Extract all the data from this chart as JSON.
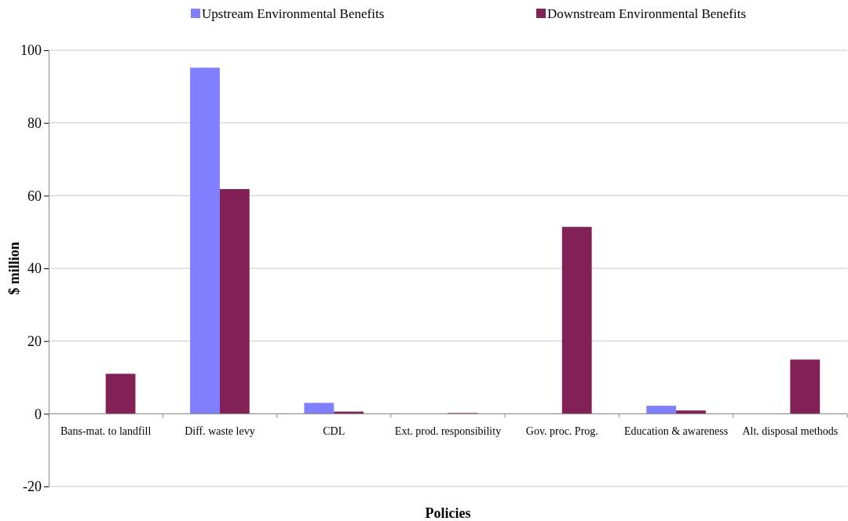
{
  "chart_data": {
    "type": "bar",
    "xlabel": "Policies",
    "ylabel": "$ million",
    "categories": [
      "Bans-mat. to landfill",
      "Diff. waste levy",
      "CDL",
      "Ext. prod. responsibility",
      "Gov. proc. Prog.",
      "Education & awareness",
      "Alt. disposal methods"
    ],
    "series": [
      {
        "name": "Upstream Environmental Benefits",
        "color": "#8080ff",
        "values": [
          0,
          95.2,
          3.0,
          0,
          0,
          2.2,
          0
        ]
      },
      {
        "name": "Downstream Environmental Benefits",
        "color": "#832058",
        "values": [
          11.0,
          61.8,
          0.6,
          0.2,
          51.4,
          0.9,
          14.9
        ]
      }
    ],
    "ylim": [
      -20,
      100
    ],
    "yticks": [
      -20,
      0,
      20,
      40,
      60,
      80,
      100
    ],
    "grid": "y",
    "legend": "top"
  }
}
